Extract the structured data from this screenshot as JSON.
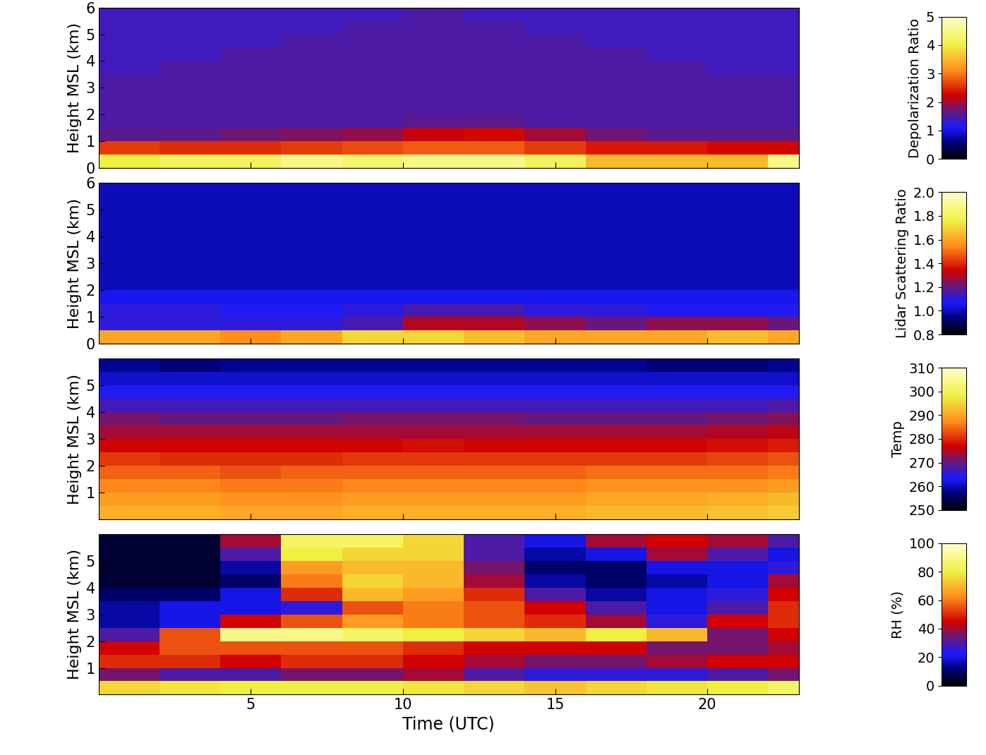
{
  "chart_data": [
    {
      "type": "heatmap",
      "y_label": "Height MSL (km)",
      "tick_labels": "y",
      "x_bins": [
        0,
        2,
        4,
        6,
        8,
        10,
        12,
        14,
        16,
        18,
        20,
        22,
        24
      ],
      "y_bins": [
        0,
        0.5,
        1,
        1.5,
        2,
        2.5,
        3,
        3.5,
        4,
        4.5,
        5,
        5.5,
        6
      ],
      "xlim": [
        0,
        23
      ],
      "ylim": [
        0,
        6
      ],
      "xticks": [
        5,
        10,
        15,
        20
      ],
      "yticks": [
        0,
        1,
        2,
        3,
        4,
        5,
        6
      ],
      "colorbar_label": "Depolarization Ratio",
      "colorbar_lim": [
        0,
        5
      ],
      "colorbar_ticks": [
        0,
        1,
        2,
        3,
        4,
        5
      ],
      "cells": [
        [
          4.0,
          4.2,
          4.2,
          4.5,
          4.3,
          4.5,
          4.5,
          4.2,
          3.5,
          3.5,
          3.5,
          4.5
        ],
        [
          2.6,
          2.5,
          2.5,
          2.6,
          2.7,
          2.8,
          2.8,
          2.6,
          2.4,
          2.4,
          2.3,
          2.3
        ],
        [
          1.6,
          1.6,
          1.7,
          1.8,
          1.9,
          2.2,
          2.3,
          2.0,
          1.7,
          1.6,
          1.6,
          1.6
        ],
        [
          1.5,
          1.5,
          1.5,
          1.5,
          1.5,
          1.6,
          1.6,
          1.5,
          1.5,
          1.5,
          1.5,
          1.5
        ],
        [
          1.5,
          1.5,
          1.5,
          1.5,
          1.5,
          1.5,
          1.5,
          1.5,
          1.5,
          1.5,
          1.5,
          1.5
        ],
        [
          1.5,
          1.5,
          1.5,
          1.5,
          1.5,
          1.5,
          1.5,
          1.5,
          1.5,
          1.5,
          1.5,
          1.5
        ],
        [
          1.5,
          1.5,
          1.5,
          1.5,
          1.5,
          1.5,
          1.5,
          1.5,
          1.5,
          1.5,
          1.5,
          1.5
        ],
        [
          1.4,
          1.5,
          1.5,
          1.5,
          1.5,
          1.5,
          1.5,
          1.5,
          1.5,
          1.5,
          1.4,
          1.4
        ],
        [
          1.4,
          1.4,
          1.5,
          1.5,
          1.5,
          1.5,
          1.5,
          1.5,
          1.5,
          1.4,
          1.4,
          1.4
        ],
        [
          1.4,
          1.4,
          1.4,
          1.5,
          1.5,
          1.5,
          1.5,
          1.5,
          1.4,
          1.4,
          1.4,
          1.4
        ],
        [
          1.4,
          1.4,
          1.4,
          1.4,
          1.5,
          1.5,
          1.5,
          1.4,
          1.4,
          1.4,
          1.4,
          1.4
        ],
        [
          1.4,
          1.4,
          1.4,
          1.4,
          1.4,
          1.5,
          1.4,
          1.4,
          1.4,
          1.4,
          1.4,
          1.4
        ]
      ]
    },
    {
      "type": "heatmap",
      "y_label": "Height MSL (km)",
      "tick_labels": "y",
      "x_bins": [
        0,
        2,
        4,
        6,
        8,
        10,
        12,
        14,
        16,
        18,
        20,
        22,
        24
      ],
      "y_bins": [
        0,
        0.5,
        1,
        1.5,
        2,
        2.5,
        3,
        3.5,
        4,
        4.5,
        5,
        5.5,
        6
      ],
      "xlim": [
        0,
        23
      ],
      "ylim": [
        0,
        6
      ],
      "xticks": [
        5,
        10,
        15,
        20
      ],
      "yticks": [
        0,
        1,
        2,
        3,
        4,
        5,
        6
      ],
      "colorbar_label": "Lidar Scattering Ratio",
      "colorbar_lim": [
        0.8,
        2.0
      ],
      "colorbar_ticks": [
        0.8,
        1.0,
        1.2,
        1.4,
        1.6,
        1.8,
        2.0
      ],
      "cells": [
        [
          1.6,
          1.6,
          1.55,
          1.6,
          1.7,
          1.7,
          1.65,
          1.6,
          1.6,
          1.6,
          1.65,
          1.6
        ],
        [
          1.1,
          1.1,
          1.1,
          1.1,
          1.15,
          1.3,
          1.3,
          1.25,
          1.2,
          1.25,
          1.25,
          1.2
        ],
        [
          1.1,
          1.1,
          1.08,
          1.08,
          1.1,
          1.15,
          1.15,
          1.1,
          1.1,
          1.08,
          1.08,
          1.08
        ],
        [
          1.05,
          1.05,
          1.05,
          1.05,
          1.05,
          1.05,
          1.05,
          1.05,
          1.05,
          1.05,
          1.05,
          1.05
        ],
        [
          1.0,
          1.0,
          1.0,
          1.0,
          1.0,
          1.0,
          1.0,
          1.0,
          1.0,
          1.0,
          1.0,
          1.0
        ],
        [
          1.0,
          1.0,
          1.0,
          1.0,
          1.0,
          1.0,
          1.0,
          1.0,
          1.0,
          1.0,
          1.0,
          1.0
        ],
        [
          1.0,
          1.0,
          1.0,
          1.0,
          1.0,
          1.0,
          1.0,
          1.0,
          1.0,
          1.0,
          1.0,
          1.0
        ],
        [
          1.0,
          1.0,
          1.0,
          1.0,
          1.0,
          1.0,
          1.0,
          1.0,
          1.0,
          1.0,
          1.0,
          1.0
        ],
        [
          1.0,
          1.0,
          1.0,
          1.0,
          1.0,
          1.0,
          1.0,
          1.0,
          1.0,
          1.0,
          1.0,
          1.0
        ],
        [
          1.0,
          1.0,
          1.0,
          1.0,
          1.0,
          1.0,
          1.0,
          1.0,
          1.0,
          1.0,
          1.0,
          1.0
        ],
        [
          1.0,
          1.0,
          1.0,
          1.0,
          1.0,
          1.0,
          1.0,
          1.0,
          1.0,
          1.0,
          1.0,
          1.0
        ],
        [
          1.0,
          1.0,
          1.0,
          1.0,
          1.0,
          1.0,
          1.0,
          1.0,
          1.0,
          1.0,
          1.0,
          1.0
        ]
      ]
    },
    {
      "type": "heatmap",
      "y_label": "Height MSL (km)",
      "tick_labels": "y",
      "x_bins": [
        0,
        2,
        4,
        6,
        8,
        10,
        12,
        14,
        16,
        18,
        20,
        22,
        24
      ],
      "y_bins": [
        0,
        0.5,
        1,
        1.5,
        2,
        2.5,
        3,
        3.5,
        4,
        4.5,
        5,
        5.5,
        6
      ],
      "xlim": [
        0,
        23
      ],
      "ylim": [
        0,
        6
      ],
      "xticks": [
        5,
        10,
        15,
        20
      ],
      "yticks": [
        1,
        2,
        3,
        4,
        5
      ],
      "colorbar_label": "Temp",
      "colorbar_lim": [
        250,
        310
      ],
      "colorbar_ticks": [
        250,
        260,
        270,
        280,
        290,
        300,
        310
      ],
      "cells": [
        [
          291,
          291,
          290,
          290,
          291,
          291,
          291,
          291,
          292,
          292,
          293,
          294
        ],
        [
          289,
          289,
          288,
          288,
          289,
          289,
          289,
          289,
          290,
          290,
          291,
          292
        ],
        [
          287,
          287,
          286,
          286,
          287,
          287,
          287,
          287,
          288,
          288,
          288,
          289
        ],
        [
          284,
          284,
          283,
          284,
          284,
          284,
          284,
          284,
          285,
          285,
          285,
          286
        ],
        [
          281,
          280,
          280,
          280,
          281,
          281,
          281,
          281,
          281,
          281,
          282,
          283
        ],
        [
          277,
          277,
          277,
          277,
          277,
          278,
          277,
          277,
          277,
          277,
          278,
          279
        ],
        [
          274,
          274,
          274,
          274,
          274,
          274,
          274,
          274,
          274,
          274,
          275,
          276
        ],
        [
          271,
          270,
          270,
          270,
          271,
          271,
          271,
          270,
          270,
          270,
          271,
          272
        ],
        [
          267,
          267,
          267,
          267,
          267,
          267,
          267,
          267,
          267,
          267,
          267,
          268
        ],
        [
          264,
          264,
          264,
          264,
          264,
          264,
          264,
          264,
          264,
          264,
          264,
          264
        ],
        [
          261,
          261,
          261,
          261,
          261,
          261,
          261,
          261,
          261,
          261,
          261,
          261
        ],
        [
          258,
          257,
          258,
          258,
          258,
          258,
          258,
          258,
          258,
          257,
          257,
          258
        ]
      ]
    },
    {
      "type": "heatmap",
      "y_label": "Height MSL (km)",
      "x_label": "Time (UTC)",
      "x_bins": [
        0,
        2,
        4,
        6,
        8,
        10,
        12,
        14,
        16,
        18,
        20,
        22,
        24
      ],
      "y_bins": [
        0,
        0.5,
        1,
        1.5,
        2,
        2.5,
        3,
        3.5,
        4,
        4.5,
        5,
        5.5,
        6
      ],
      "xlim": [
        0,
        23
      ],
      "ylim": [
        0,
        6
      ],
      "xticks": [
        5,
        10,
        15,
        20
      ],
      "yticks": [
        1,
        2,
        3,
        4,
        5
      ],
      "colorbar_label": "RH (%)",
      "colorbar_lim": [
        0,
        100
      ],
      "colorbar_ticks": [
        0,
        20,
        40,
        60,
        80,
        100
      ],
      "cells": [
        [
          75,
          78,
          80,
          80,
          80,
          78,
          75,
          72,
          75,
          78,
          80,
          85
        ],
        [
          35,
          30,
          30,
          35,
          35,
          40,
          30,
          25,
          25,
          25,
          30,
          35
        ],
        [
          50,
          50,
          45,
          50,
          50,
          45,
          40,
          35,
          35,
          40,
          45,
          45
        ],
        [
          45,
          55,
          55,
          55,
          55,
          50,
          45,
          45,
          45,
          35,
          35,
          40
        ],
        [
          30,
          55,
          90,
          90,
          85,
          80,
          75,
          70,
          80,
          70,
          35,
          45
        ],
        [
          15,
          20,
          45,
          55,
          65,
          60,
          55,
          50,
          40,
          25,
          45,
          50
        ],
        [
          15,
          20,
          20,
          25,
          55,
          60,
          55,
          45,
          30,
          20,
          30,
          50
        ],
        [
          10,
          10,
          20,
          50,
          70,
          65,
          50,
          30,
          15,
          20,
          25,
          45
        ],
        [
          5,
          5,
          10,
          60,
          75,
          70,
          40,
          15,
          10,
          15,
          20,
          40
        ],
        [
          5,
          5,
          15,
          65,
          70,
          70,
          35,
          10,
          10,
          20,
          20,
          25
        ],
        [
          5,
          5,
          30,
          80,
          75,
          75,
          30,
          15,
          20,
          40,
          30,
          20
        ],
        [
          5,
          5,
          40,
          85,
          85,
          75,
          30,
          20,
          40,
          45,
          40,
          30
        ]
      ]
    }
  ]
}
